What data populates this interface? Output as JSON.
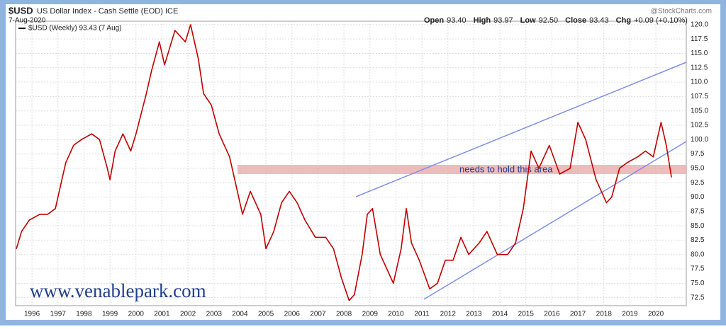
{
  "header": {
    "symbol": "$USD",
    "title": "US Dollar Index - Cash Settle (EOD) ICE",
    "date": "7-Aug-2020",
    "source": "@StockCharts.com",
    "quote": [
      {
        "label": "Open",
        "value": "93.40"
      },
      {
        "label": "High",
        "value": "93.97"
      },
      {
        "label": "Low",
        "value": "92.50"
      },
      {
        "label": "Close",
        "value": "93.43"
      },
      {
        "label": "Chg",
        "value": "+0.09 (+0.10%)"
      }
    ]
  },
  "chart_data": {
    "type": "line",
    "legend": "$USD (Weekly) 93.43 (7 Aug)",
    "annotation": "needs to hold this area",
    "watermark": "www.venablepark.com",
    "x": [
      1995.4,
      1995.6,
      1995.9,
      1996.3,
      1996.6,
      1996.9,
      1997.1,
      1997.3,
      1997.6,
      1997.9,
      1998.3,
      1998.6,
      1998.9,
      1999.0,
      1999.2,
      1999.5,
      1999.8,
      2000.0,
      2000.4,
      2000.6,
      2000.9,
      2001.1,
      2001.5,
      2001.9,
      2002.1,
      2002.4,
      2002.6,
      2002.9,
      2003.2,
      2003.6,
      2003.9,
      2004.1,
      2004.4,
      2004.8,
      2005.0,
      2005.3,
      2005.6,
      2005.9,
      2006.2,
      2006.5,
      2006.9,
      2007.3,
      2007.6,
      2007.9,
      2008.2,
      2008.4,
      2008.7,
      2008.9,
      2009.1,
      2009.4,
      2009.9,
      2010.2,
      2010.4,
      2010.6,
      2010.9,
      2011.3,
      2011.6,
      2011.9,
      2012.2,
      2012.5,
      2012.8,
      2013.2,
      2013.5,
      2013.9,
      2014.3,
      2014.6,
      2014.9,
      2015.2,
      2015.5,
      2015.9,
      2016.3,
      2016.7,
      2017.0,
      2017.3,
      2017.7,
      2018.1,
      2018.3,
      2018.6,
      2018.9,
      2019.3,
      2019.6,
      2019.9,
      2020.2,
      2020.4,
      2020.6
    ],
    "series": [
      {
        "name": "$USD",
        "color": "#c00000",
        "values": [
          81,
          84,
          86,
          87,
          87,
          88,
          92,
          96,
          99,
          100,
          101,
          100,
          95,
          93,
          98,
          101,
          98,
          101,
          108,
          112,
          117,
          113,
          119,
          117,
          120,
          114,
          108,
          106,
          101,
          97,
          91,
          87,
          91,
          87,
          81,
          84,
          89,
          91,
          89,
          86,
          83,
          83,
          81,
          76,
          72,
          73,
          80,
          87,
          88,
          80,
          75,
          81,
          88,
          82,
          79,
          74,
          75,
          79,
          79,
          83,
          80,
          82,
          84,
          80,
          80,
          82,
          88,
          98,
          95,
          99,
          94,
          95,
          103,
          100,
          93,
          89,
          90,
          95,
          96,
          97,
          98,
          97,
          103,
          99,
          93.43
        ]
      }
    ],
    "xlim": [
      1995.37,
      2021.17
    ],
    "xticks": [
      1996,
      1997,
      1998,
      1999,
      2000,
      2001,
      2002,
      2003,
      2004,
      2005,
      2006,
      2007,
      2008,
      2009,
      2010,
      2011,
      2012,
      2013,
      2014,
      2015,
      2016,
      2017,
      2018,
      2019,
      2020
    ],
    "ylim": [
      71.1,
      120.6
    ],
    "yticks": [
      72.5,
      {
        "value": 75,
        "label": "75.0"
      },
      77.5,
      {
        "value": 80,
        "label": "80.0"
      },
      82.5,
      {
        "value": 85,
        "label": "85.0"
      },
      87.5,
      {
        "value": 90,
        "label": "90.0"
      },
      92.5,
      {
        "value": 95,
        "label": "95.0"
      },
      97.5,
      {
        "value": 100,
        "label": "100.0"
      },
      102.5,
      {
        "value": 105,
        "label": "105.0"
      },
      107.5,
      {
        "value": 110,
        "label": "110.0"
      },
      112.5,
      {
        "value": 115,
        "label": "115.0"
      },
      117.5,
      {
        "value": 120,
        "label": "120.0"
      }
    ],
    "grid": true
  }
}
